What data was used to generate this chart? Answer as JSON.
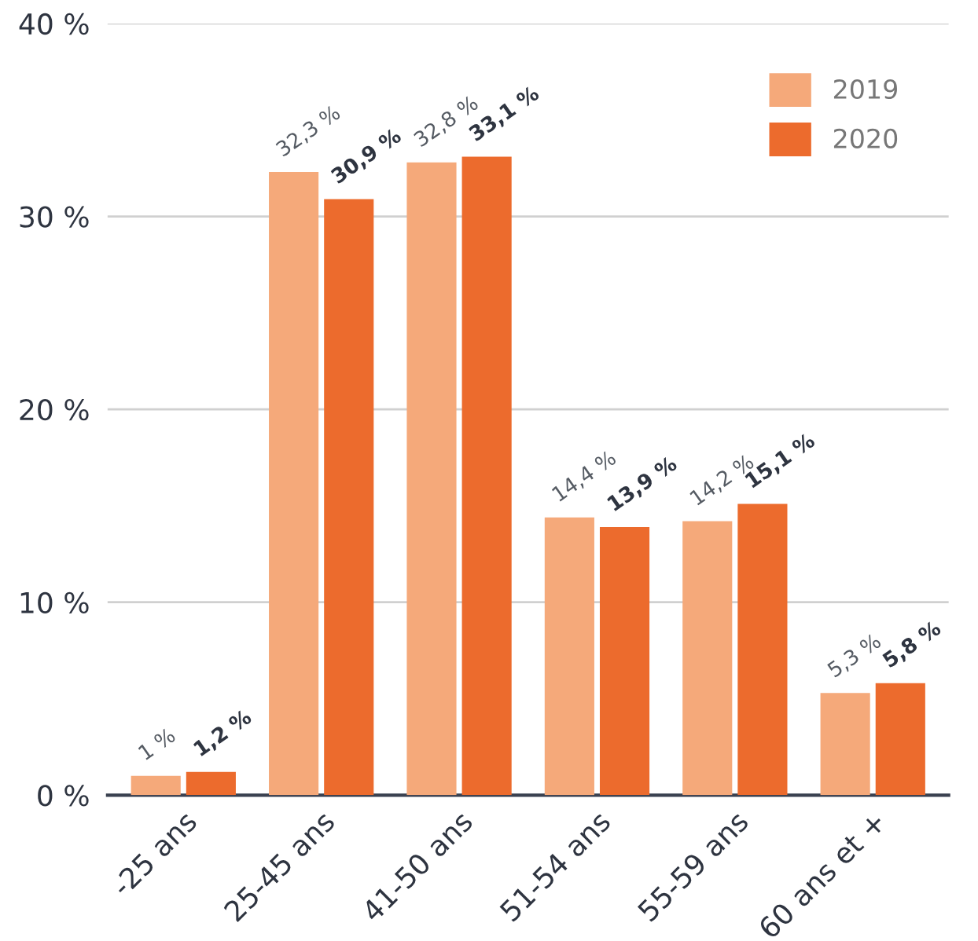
{
  "chart_data": {
    "type": "bar",
    "categories": [
      "-25 ans",
      "25-45 ans",
      "41-50 ans",
      "51-54 ans",
      "55-59 ans",
      "60 ans et +"
    ],
    "series": [
      {
        "name": "2019",
        "color": "#f5a97a",
        "values": [
          1,
          32.3,
          32.8,
          14.4,
          14.2,
          5.3
        ],
        "value_labels": [
          "1 %",
          "32,3 %",
          "32,8 %",
          "14,4 %",
          "14,2 %",
          "5,3 %"
        ]
      },
      {
        "name": "2020",
        "color": "#ec6b2d",
        "values": [
          1.2,
          30.9,
          33.1,
          13.9,
          15.1,
          5.8
        ],
        "value_labels": [
          "1,2 %",
          "30,9 %",
          "33,1 %",
          "13,9 %",
          "15,1 %",
          "5,8 %"
        ]
      }
    ],
    "ylim": [
      0,
      40
    ],
    "yticks": [
      {
        "value": 0,
        "label": "0 %"
      },
      {
        "value": 10,
        "label": "10 %"
      },
      {
        "value": 20,
        "label": "20 %"
      },
      {
        "value": 30,
        "label": "30 %"
      },
      {
        "value": 40,
        "label": "40 %"
      }
    ],
    "grid": "y",
    "legend": "top right"
  }
}
